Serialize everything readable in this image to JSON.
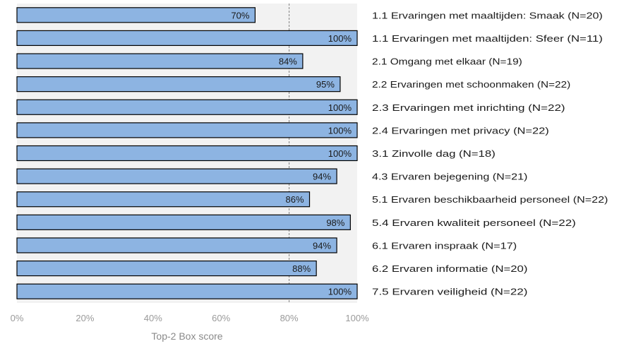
{
  "chart_data": {
    "type": "bar",
    "orientation": "horizontal",
    "categories": [
      "1.1 Ervaringen met maaltijden: Smaak (N=20)",
      "1.1 Ervaringen met maaltijden: Sfeer (N=11)",
      "2.1 Omgang met elkaar (N=19)",
      "2.2 Ervaringen met schoonmaken (N=22)",
      "2.3 Ervaringen met inrichting (N=22)",
      "2.4 Ervaringen met privacy (N=22)",
      "3.1 Zinvolle dag (N=18)",
      "4.3 Ervaren bejegening (N=21)",
      "5.1 Ervaren beschikbaarheid personeel (N=22)",
      "5.4 Ervaren kwaliteit personeel (N=22)",
      "6.1 Ervaren inspraak (N=17)",
      "6.2 Ervaren informatie (N=20)",
      "7.5 Ervaren veiligheid (N=22)"
    ],
    "values": [
      70,
      100,
      84,
      95,
      100,
      100,
      100,
      94,
      86,
      98,
      94,
      88,
      100
    ],
    "data_labels": [
      "70%",
      "100%",
      "84%",
      "95%",
      "100%",
      "100%",
      "100%",
      "94%",
      "86%",
      "98%",
      "94%",
      "88%",
      "100%"
    ],
    "xlabel": "Top-2 Box score",
    "ylabel": "",
    "xlim": [
      0,
      100
    ],
    "x_ticks": [
      0,
      20,
      40,
      60,
      80,
      100
    ],
    "x_tick_labels": [
      "0%",
      "20%",
      "40%",
      "60%",
      "80%",
      "100%"
    ],
    "reference_line": 80,
    "grid": false,
    "legend": "none",
    "colors": {
      "bar_fill": "#8db4e2",
      "bar_stroke": "#000000",
      "plot_background": "#f2f2f2",
      "reference_line": "#808080",
      "tick_label": "#9a9a9a"
    }
  }
}
